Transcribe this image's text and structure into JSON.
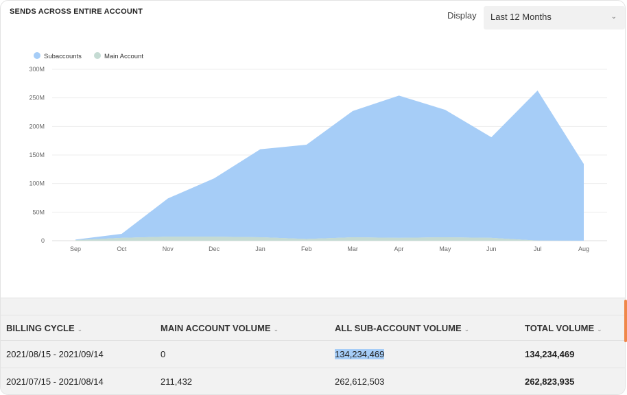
{
  "header": {
    "title": "SENDS ACROSS ENTIRE ACCOUNT",
    "display_label": "Display",
    "display_value": "Last 12 Months"
  },
  "chart_data": {
    "type": "area",
    "stacked": true,
    "x": [
      "Sep",
      "Oct",
      "Nov",
      "Dec",
      "Jan",
      "Feb",
      "Mar",
      "Apr",
      "May",
      "Jun",
      "Jul",
      "Aug"
    ],
    "yticks": [
      "0",
      "50M",
      "100M",
      "150M",
      "200M",
      "250M",
      "300M"
    ],
    "ylim": [
      0,
      300000000
    ],
    "grid": true,
    "legend": "top-left",
    "series": [
      {
        "name": "Main Account",
        "color": "#c5dbd3",
        "values": [
          1000000,
          5000000,
          7000000,
          7000000,
          6000000,
          3000000,
          6000000,
          5000000,
          6000000,
          5000000,
          211432,
          0
        ]
      },
      {
        "name": "Subaccounts",
        "color": "#a6cdf7",
        "values": [
          1000000,
          7000000,
          67000000,
          102000000,
          154000000,
          165000000,
          221000000,
          249000000,
          223000000,
          176000000,
          262612503,
          134234469
        ]
      }
    ]
  },
  "table": {
    "headers": [
      "BILLING CYCLE",
      "MAIN ACCOUNT VOLUME",
      "ALL SUB-ACCOUNT VOLUME",
      "TOTAL VOLUME"
    ],
    "sort_icon": "chevron-down-icon",
    "rows": [
      [
        "2021/08/15 - 2021/09/14",
        "0",
        "134,234,469",
        "134,234,469"
      ],
      [
        "2021/07/15 - 2021/08/14",
        "211,432",
        "262,612,503",
        "262,823,935"
      ]
    ]
  }
}
